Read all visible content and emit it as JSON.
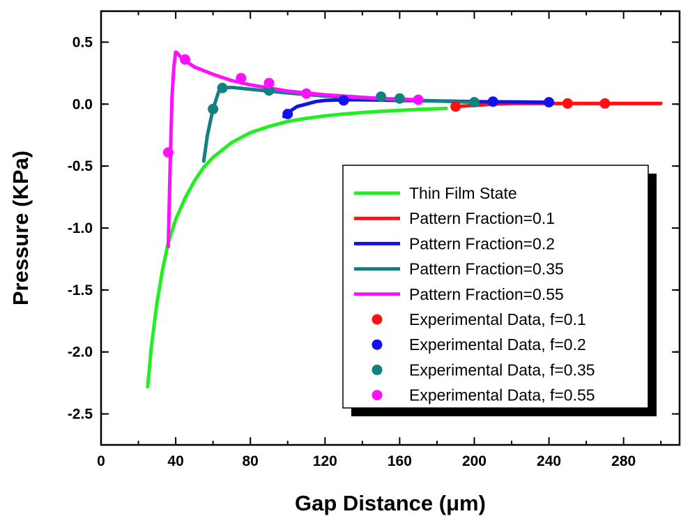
{
  "chart_data": {
    "type": "line",
    "title": "",
    "xlabel": "Gap Distance (μm)",
    "ylabel": "Pressure (KPa)",
    "xlim": [
      0,
      310
    ],
    "ylim": [
      -2.75,
      0.75
    ],
    "xticks": [
      0,
      40,
      80,
      120,
      160,
      200,
      240,
      280
    ],
    "xtick_labels": [
      "0",
      "40",
      "80",
      "120",
      "160",
      "200",
      "240",
      "280"
    ],
    "yticks": [
      0.5,
      0.0,
      -0.5,
      -1.0,
      -1.5,
      -2.0,
      -2.5
    ],
    "ytick_labels": [
      "0.5",
      "0.0",
      "-0.5",
      "-1.0",
      "-1.5",
      "-2.0",
      "-2.5"
    ],
    "grid": false,
    "legend_position": "lower-right",
    "series": [
      {
        "name": "Thin Film State",
        "kind": "line",
        "color": "#22ee22",
        "x": [
          25,
          27,
          30,
          33,
          36,
          40,
          45,
          50,
          55,
          60,
          70,
          80,
          90,
          100,
          110,
          120,
          130,
          140,
          150,
          160,
          170,
          185
        ],
        "y": [
          -2.28,
          -1.95,
          -1.6,
          -1.33,
          -1.12,
          -0.93,
          -0.76,
          -0.62,
          -0.51,
          -0.43,
          -0.31,
          -0.23,
          -0.18,
          -0.14,
          -0.115,
          -0.095,
          -0.08,
          -0.068,
          -0.058,
          -0.05,
          -0.043,
          -0.035
        ]
      },
      {
        "name": "Pattern Fraction=0.1",
        "kind": "line",
        "color": "#ff1111",
        "x": [
          190,
          200,
          210,
          220,
          240,
          260,
          280,
          300
        ],
        "y": [
          -0.02,
          -0.01,
          0.0,
          0.005,
          0.005,
          0.005,
          0.005,
          0.005
        ]
      },
      {
        "name": "Pattern Fraction=0.2",
        "kind": "line",
        "color": "#1111ee",
        "x": [
          98,
          100,
          105,
          110,
          115,
          120,
          130,
          140,
          160,
          180,
          200,
          220,
          240
        ],
        "y": [
          -0.1,
          -0.07,
          -0.02,
          0.0,
          0.02,
          0.03,
          0.035,
          0.035,
          0.03,
          0.025,
          0.02,
          0.018,
          0.015
        ]
      },
      {
        "name": "Pattern Fraction=0.35",
        "kind": "line",
        "color": "#118080",
        "x": [
          55,
          57,
          60,
          63,
          65,
          70,
          80,
          90,
          100,
          120,
          140,
          160,
          180,
          200
        ],
        "y": [
          -0.46,
          -0.25,
          -0.04,
          0.1,
          0.13,
          0.135,
          0.12,
          0.105,
          0.09,
          0.065,
          0.05,
          0.035,
          0.025,
          0.015
        ]
      },
      {
        "name": "Pattern Fraction=0.55",
        "kind": "line",
        "color": "#ff11ff",
        "x": [
          36,
          37,
          38,
          39,
          40,
          41,
          42,
          45,
          50,
          60,
          70,
          80,
          90,
          100,
          110,
          120,
          130,
          150,
          170
        ],
        "y": [
          -1.15,
          -0.5,
          0.05,
          0.3,
          0.42,
          0.41,
          0.39,
          0.35,
          0.3,
          0.24,
          0.19,
          0.155,
          0.13,
          0.105,
          0.09,
          0.075,
          0.065,
          0.045,
          0.035
        ]
      },
      {
        "name": "Experimental Data, f=0.1",
        "kind": "scatter",
        "color": "#ff1111",
        "x": [
          190,
          250,
          270
        ],
        "y": [
          -0.02,
          0.005,
          0.005
        ]
      },
      {
        "name": "Experimental Data, f=0.2",
        "kind": "scatter",
        "color": "#1111ee",
        "x": [
          100,
          130,
          210,
          240
        ],
        "y": [
          -0.08,
          0.03,
          0.02,
          0.015
        ]
      },
      {
        "name": "Experimental Data, f=0.35",
        "kind": "scatter",
        "color": "#118080",
        "x": [
          60,
          65,
          90,
          150,
          160,
          200
        ],
        "y": [
          -0.04,
          0.13,
          0.11,
          0.06,
          0.045,
          0.015
        ]
      },
      {
        "name": "Experimental Data, f=0.55",
        "kind": "scatter",
        "color": "#ff11ff",
        "x": [
          36,
          45,
          75,
          90,
          110,
          170
        ],
        "y": [
          -0.39,
          0.36,
          0.21,
          0.17,
          0.085,
          0.035
        ]
      }
    ]
  }
}
